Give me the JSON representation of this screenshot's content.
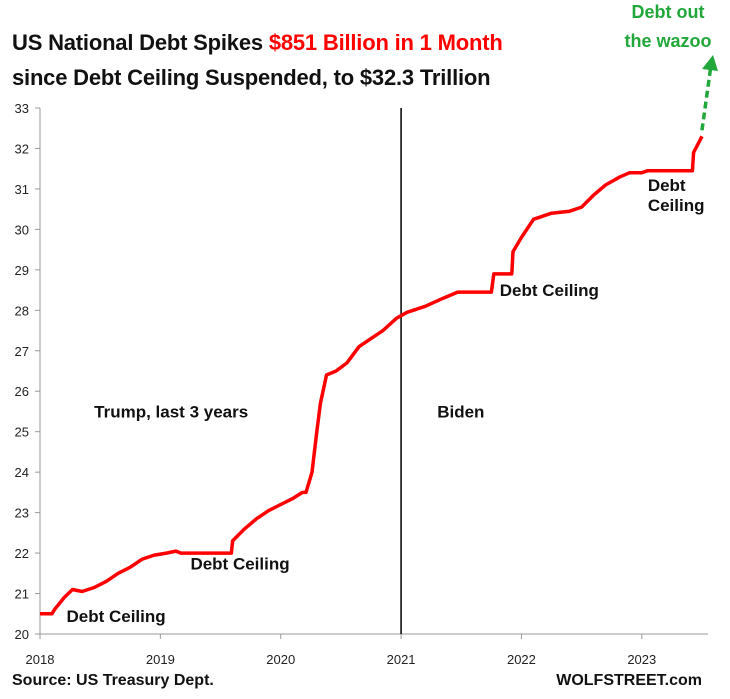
{
  "title_line1_prefix": "US National Debt Spikes ",
  "title_line1_highlight": "$851 Billion in 1 Month",
  "title_line2": "since Debt Ceiling Suspended, to $32.3 Trillion",
  "source": "Source: US Treasury Dept.",
  "brand": "WOLFSTREET.com",
  "colors": {
    "series": "#ff0000",
    "highlight": "#ff0000",
    "arrow": "#22a83a",
    "divider": "#000000"
  },
  "chart_data": {
    "type": "line",
    "title": "US National Debt Spikes $851 Billion in 1 Month since Debt Ceiling Suspended, to $32.3 Trillion",
    "xlabel": "",
    "ylabel": "",
    "xlim": [
      2018.0,
      2023.55
    ],
    "ylim": [
      20,
      33
    ],
    "x_ticks": [
      "2018",
      "2019",
      "2020",
      "2021",
      "2022",
      "2023"
    ],
    "y_ticks": [
      "20",
      "21",
      "22",
      "23",
      "24",
      "25",
      "26",
      "27",
      "28",
      "29",
      "30",
      "31",
      "32",
      "33"
    ],
    "grid": false,
    "legend": "none",
    "x": [
      2018.0,
      2018.1,
      2018.12,
      2018.2,
      2018.27,
      2018.35,
      2018.45,
      2018.55,
      2018.65,
      2018.75,
      2018.85,
      2018.95,
      2019.05,
      2019.13,
      2019.17,
      2019.59,
      2019.6,
      2019.7,
      2019.8,
      2019.9,
      2020.0,
      2020.1,
      2020.18,
      2020.21,
      2020.26,
      2020.3,
      2020.33,
      2020.38,
      2020.46,
      2020.55,
      2020.65,
      2020.75,
      2020.85,
      2020.96,
      2021.05,
      2021.2,
      2021.35,
      2021.47,
      2021.55,
      2021.75,
      2021.77,
      2021.92,
      2021.93,
      2022.0,
      2022.1,
      2022.25,
      2022.4,
      2022.5,
      2022.6,
      2022.7,
      2022.82,
      2022.9,
      2023.0,
      2023.05,
      2023.42,
      2023.43,
      2023.5
    ],
    "y": [
      20.5,
      20.5,
      20.6,
      20.9,
      21.1,
      21.05,
      21.15,
      21.3,
      21.5,
      21.65,
      21.85,
      21.95,
      22.0,
      22.05,
      22.0,
      22.0,
      22.3,
      22.6,
      22.85,
      23.05,
      23.2,
      23.35,
      23.5,
      23.5,
      24.0,
      25.0,
      25.7,
      26.4,
      26.5,
      26.7,
      27.1,
      27.3,
      27.5,
      27.8,
      27.95,
      28.1,
      28.3,
      28.45,
      28.45,
      28.45,
      28.9,
      28.9,
      29.45,
      29.8,
      30.25,
      30.4,
      30.45,
      30.55,
      30.85,
      31.1,
      31.3,
      31.4,
      31.4,
      31.45,
      31.45,
      31.9,
      32.3
    ],
    "annotations": [
      {
        "text": "Debt Ceiling",
        "x": 2018.22,
        "y": 20.3
      },
      {
        "text": "Debt Ceiling",
        "x": 2019.25,
        "y": 21.6
      },
      {
        "text": "Debt Ceiling",
        "x": 2021.82,
        "y": 28.35
      },
      {
        "text": "Debt",
        "x": 2023.05,
        "y": 30.95
      },
      {
        "text": "Ceiling",
        "x": 2023.05,
        "y": 30.45
      },
      {
        "text": "Trump, last 3 years",
        "x": 2018.45,
        "y": 25.35
      },
      {
        "text": "Biden",
        "x": 2021.3,
        "y": 25.35
      }
    ],
    "callout": {
      "line1": "Debt out",
      "line2": "the wazoo"
    },
    "divider_x": 2021.0
  }
}
